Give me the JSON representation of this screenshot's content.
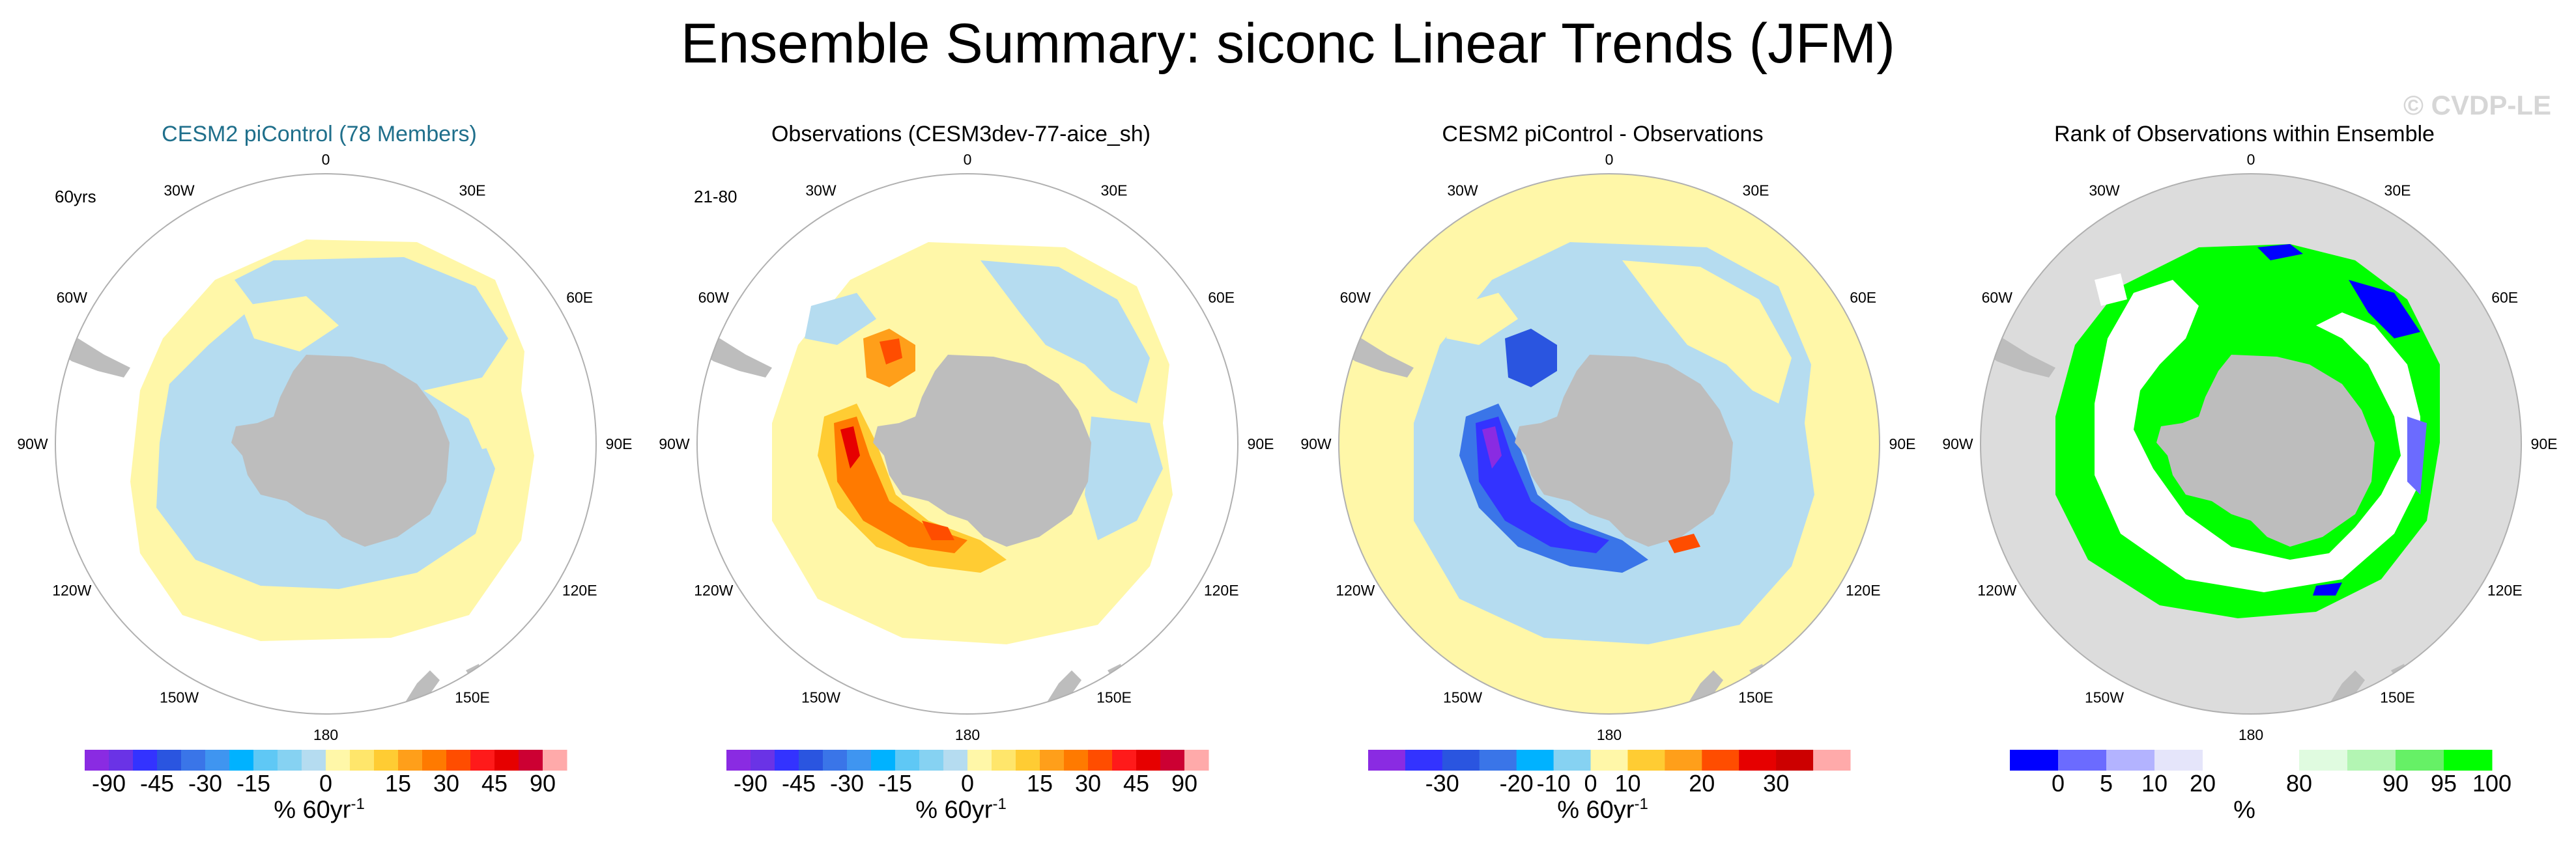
{
  "title": "Ensemble Summary: siconc Linear Trends (JFM)",
  "copyright": "© CVDP-LE",
  "colors": {
    "land": "#bdbdbd",
    "ocean_bg": "#ffffff",
    "near_zero_pos": "#fff7a8",
    "near_zero_neg": "#b5dcf0",
    "title_link": "#1f6f8b",
    "rank_bg": "#dcdcdc",
    "rank_green": "#00ff00",
    "rank_blue": "#0000ff"
  },
  "longitude_labels": [
    "0",
    "30E",
    "60E",
    "90E",
    "120E",
    "150E",
    "180",
    "150W",
    "120W",
    "90W",
    "60W",
    "30W"
  ],
  "panels": [
    {
      "title": "CESM2 piControl (78 Members)",
      "period": "60yrs",
      "units_base": "% 60yr",
      "units_exp": "-1",
      "colorbar": {
        "colors": [
          "#8a2be2",
          "#6a33e6",
          "#3333ff",
          "#2a55e0",
          "#3a75e8",
          "#3f95f0",
          "#00b2ff",
          "#5fc8f5",
          "#86d2f2",
          "#b5dcf0",
          "#fff7a8",
          "#ffe66b",
          "#ffcc33",
          "#ff9f1a",
          "#ff7a00",
          "#ff4d00",
          "#ff1a1a",
          "#e60000",
          "#cc0033",
          "#ffaaaa"
        ],
        "tick_labels": [
          "-90",
          "-45",
          "-30",
          "-15",
          "0",
          "15",
          "30",
          "45",
          "90"
        ]
      }
    },
    {
      "title": "Observations (CESM3dev-77-aice_sh)",
      "period": "21-80",
      "units_base": "% 60yr",
      "units_exp": "-1",
      "colorbar": {
        "colors": [
          "#8a2be2",
          "#6a33e6",
          "#3333ff",
          "#2a55e0",
          "#3a75e8",
          "#3f95f0",
          "#00b2ff",
          "#5fc8f5",
          "#86d2f2",
          "#b5dcf0",
          "#fff7a8",
          "#ffe66b",
          "#ffcc33",
          "#ff9f1a",
          "#ff7a00",
          "#ff4d00",
          "#ff1a1a",
          "#e60000",
          "#cc0033",
          "#ffaaaa"
        ],
        "tick_labels": [
          "-90",
          "-45",
          "-30",
          "-15",
          "0",
          "15",
          "30",
          "45",
          "90"
        ]
      }
    },
    {
      "title": "CESM2 piControl - Observations",
      "period": "",
      "units_base": "% 60yr",
      "units_exp": "-1",
      "colorbar": {
        "colors": [
          "#8a2be2",
          "#3333ff",
          "#2a55e0",
          "#3a75e8",
          "#00b2ff",
          "#86d2f2",
          "#fff7a8",
          "#ffcc33",
          "#ff9f1a",
          "#ff4d00",
          "#e60000",
          "#cc0000",
          "#ffaaaa"
        ],
        "tick_labels": [
          "-30",
          "-20",
          "-10",
          "0",
          "10",
          "20",
          "30"
        ]
      }
    },
    {
      "title": "Rank of Observations within Ensemble",
      "period": "",
      "units_base": "%",
      "units_exp": "",
      "colorbar": {
        "colors": [
          "#0000ff",
          "#6b6bff",
          "#b3b3ff",
          "#e5e5fa",
          "#ffffff",
          "#ffffff",
          "#e0fbe0",
          "#b3f5b3",
          "#66f066",
          "#00ff00"
        ],
        "tick_labels": [
          "0",
          "5",
          "10",
          "20",
          "80",
          "90",
          "95",
          "100"
        ]
      }
    }
  ],
  "chart_data": [
    {
      "type": "heatmap",
      "title": "CESM2 piControl (78 Members)",
      "projection": "south polar stereographic",
      "variable": "siconc linear trend (JFM)",
      "units": "% 60yr-1",
      "levels": [
        -90,
        -45,
        -30,
        -15,
        0,
        15,
        30,
        45,
        90
      ],
      "pattern_summary": "Weak trends everywhere: ring of small positive (0 to 5) values around a band of small negative (-5 to 0) values adjacent to Antarctica"
    },
    {
      "type": "heatmap",
      "title": "Observations (CESM3dev-77-aice_sh)",
      "projection": "south polar stereographic",
      "variable": "siconc linear trend (JFM)",
      "units": "% 60yr-1",
      "levels": [
        -90,
        -45,
        -30,
        -15,
        0,
        15,
        30,
        45,
        90
      ],
      "pattern_summary": "Strong positive trends (up to ~45-60) in Weddell and Amundsen/Bellingshausen sector coastal regions, weak elsewhere"
    },
    {
      "type": "heatmap",
      "title": "CESM2 piControl - Observations",
      "projection": "south polar stereographic",
      "variable": "difference",
      "units": "% 60yr-1",
      "levels": [
        -30,
        -20,
        -10,
        0,
        10,
        20,
        30
      ],
      "pattern_summary": "Negative differences (down to ~-30) where observations have strong positive trends; small positive values elsewhere"
    },
    {
      "type": "heatmap",
      "title": "Rank of Observations within Ensemble",
      "projection": "south polar stereographic",
      "variable": "rank",
      "units": "%",
      "levels": [
        0,
        5,
        10,
        20,
        80,
        90,
        95,
        100
      ],
      "pattern_summary": "Most of the sea ice zone ranks above 95-100% (green); interior ring near 20-80 (white); small low-rank (blue) patches"
    }
  ]
}
